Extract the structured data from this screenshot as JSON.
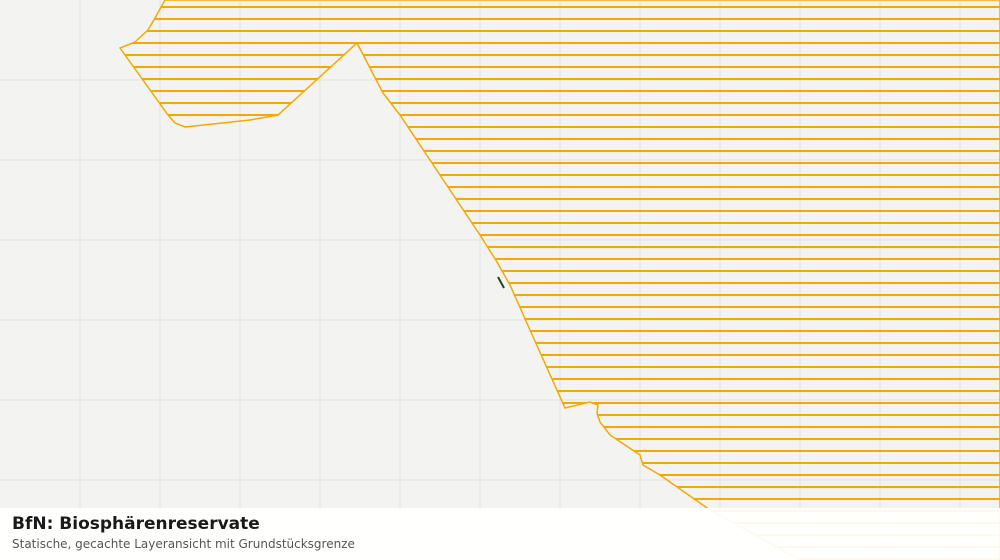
{
  "footer": {
    "title": "BfN: Biosphärenreservate",
    "subtitle": "Statische, gecachte Layeransicht mit Grundstücksgrenze"
  }
}
